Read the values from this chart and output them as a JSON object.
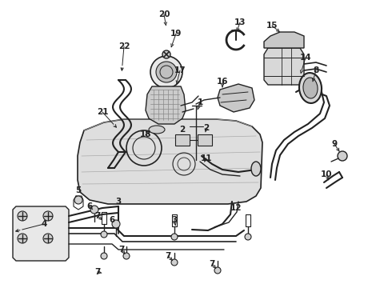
{
  "bg_color": "#ffffff",
  "lc": "#222222",
  "figsize": [
    4.9,
    3.6
  ],
  "dpi": 100,
  "xlim": [
    0,
    490
  ],
  "ylim": [
    0,
    360
  ]
}
